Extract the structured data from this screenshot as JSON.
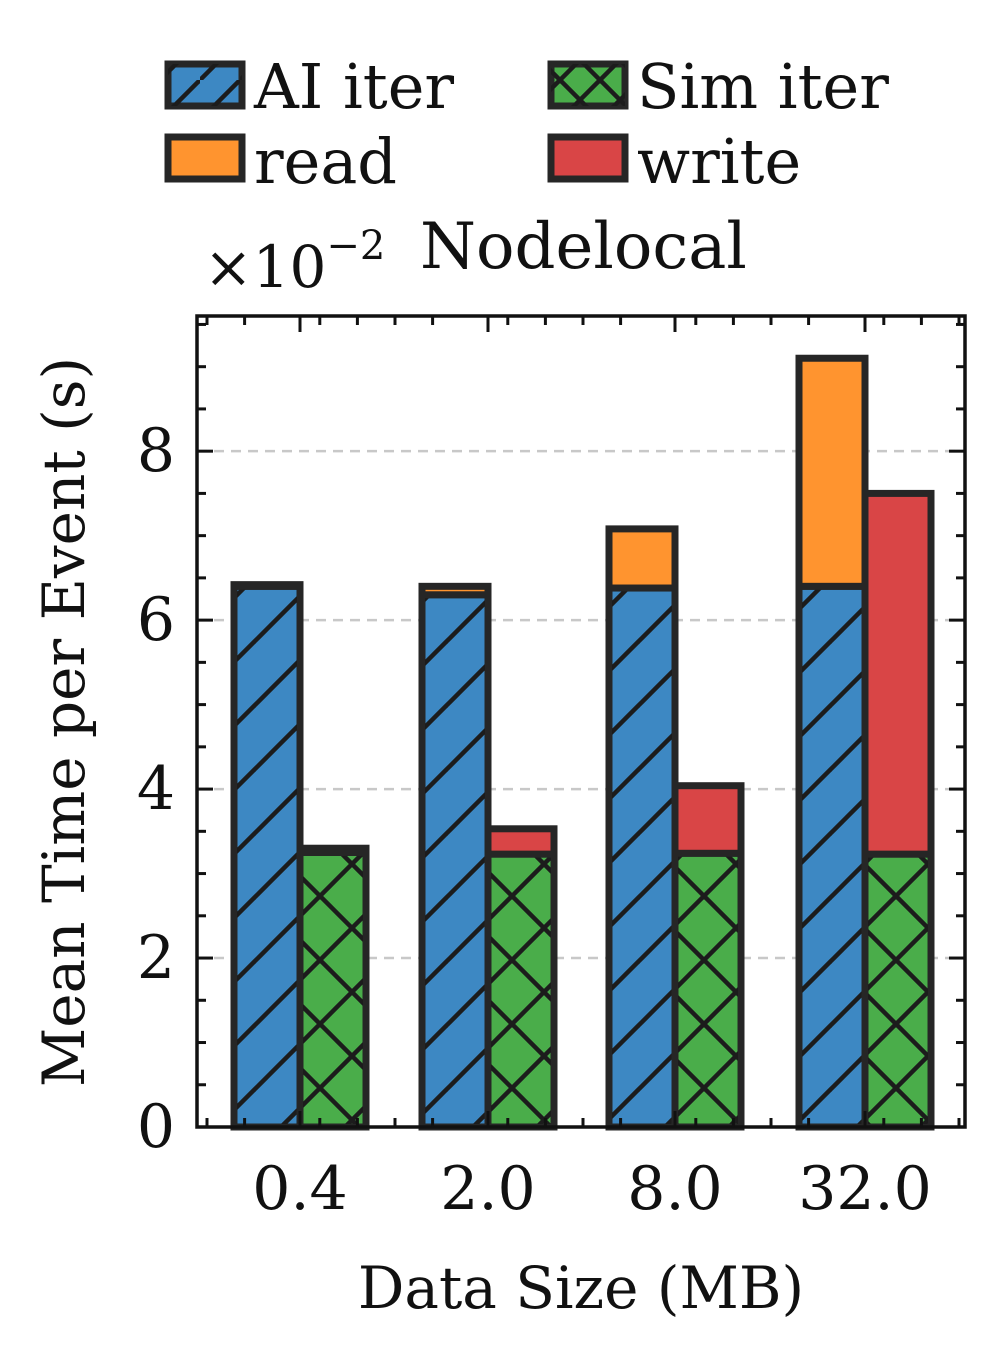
{
  "colors": {
    "ai_iter": "#3d88c3",
    "sim_iter": "#4aad4a",
    "read": "#ff942f",
    "write": "#d94546",
    "edge": "#262626",
    "grid": "#c8c8c8"
  },
  "chart_data": {
    "type": "bar",
    "title": "Nodelocal",
    "scale_label": "×10",
    "scale_exponent": "−2",
    "xlabel": "Data Size (MB)",
    "ylabel": "Mean Time per Event (s)",
    "categories": [
      "0.4",
      "2.0",
      "8.0",
      "32.0"
    ],
    "ylim": [
      0,
      9.6
    ],
    "yticks": [
      0,
      2,
      4,
      6,
      8
    ],
    "ytick_labels": [
      "0",
      "2",
      "4",
      "6",
      "8"
    ],
    "grid": "y-dashed",
    "legend": {
      "placement": "top",
      "entries": [
        "AI iter",
        "Sim iter",
        "read",
        "write"
      ]
    },
    "series": [
      {
        "name": "AI iter",
        "group": "ai",
        "hatch": "diagonal",
        "values": [
          6.4,
          6.3,
          6.38,
          6.4
        ]
      },
      {
        "name": "read",
        "group": "ai",
        "hatch": "none",
        "values": [
          0.02,
          0.1,
          0.7,
          2.7
        ]
      },
      {
        "name": "Sim iter",
        "group": "sim",
        "hatch": "cross",
        "values": [
          3.25,
          3.23,
          3.24,
          3.23
        ]
      },
      {
        "name": "write",
        "group": "sim",
        "hatch": "none",
        "values": [
          0.05,
          0.3,
          0.8,
          4.27
        ]
      }
    ]
  }
}
